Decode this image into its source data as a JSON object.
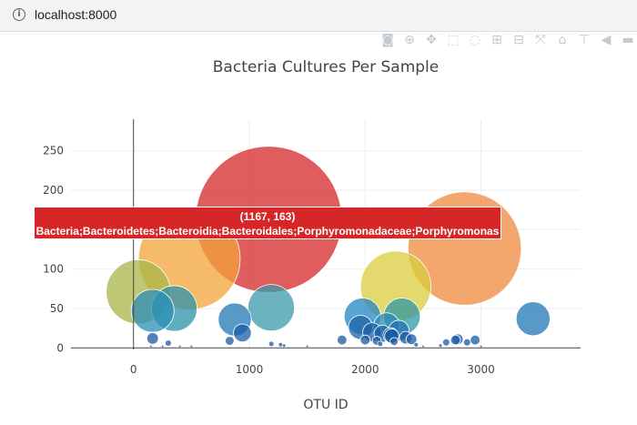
{
  "browser": {
    "url": "localhost:8000"
  },
  "modebar_icons": [
    "camera-icon",
    "zoom-icon",
    "pan-icon",
    "box-select-icon",
    "lasso-icon",
    "zoom-in-icon",
    "zoom-out-icon",
    "autoscale-icon",
    "reset-axes-icon",
    "spike-lines-icon",
    "hover-closest-icon",
    "hover-compare-icon"
  ],
  "chart_data": {
    "type": "scatter",
    "title": "Bacteria Cultures Per Sample",
    "xlabel": "OTU ID",
    "ylabel": "",
    "xticks": [
      0,
      1000,
      2000,
      3000
    ],
    "yticks": [
      0,
      50,
      100,
      150,
      200,
      250
    ],
    "xlim": [
      -540,
      3860
    ],
    "ylim": [
      -2,
      290
    ],
    "grid": true,
    "hover": {
      "line1": "(1167, 163)",
      "line2": "Bacteria;Bacteroidetes;Bacteroidia;Bacteroidales;Porphyromonadaceae;Porphyromonas"
    },
    "points": [
      {
        "x": 1167,
        "y": 163,
        "r": 163,
        "color": "#d62728"
      },
      {
        "x": 2859,
        "y": 126,
        "r": 126,
        "color": "#f08a3c"
      },
      {
        "x": 482,
        "y": 113,
        "r": 113,
        "color": "#f3a33a"
      },
      {
        "x": 2264,
        "y": 78,
        "r": 78,
        "color": "#d9cc3c"
      },
      {
        "x": 41,
        "y": 71,
        "r": 71,
        "color": "#aab64a"
      },
      {
        "x": 1189,
        "y": 51,
        "r": 51,
        "color": "#3a9aa8"
      },
      {
        "x": 352,
        "y": 50,
        "r": 50,
        "color": "#2a92a8"
      },
      {
        "x": 165,
        "y": 47,
        "r": 47,
        "color": "#2b8fb8"
      },
      {
        "x": 2318,
        "y": 40,
        "r": 40,
        "color": "#2d97a6"
      },
      {
        "x": 1977,
        "y": 40,
        "r": 40,
        "color": "#2386c2"
      },
      {
        "x": 3450,
        "y": 37,
        "r": 37,
        "color": "#1f77b4"
      },
      {
        "x": 874,
        "y": 36,
        "r": 36,
        "color": "#1f77b4"
      },
      {
        "x": 2186,
        "y": 28,
        "r": 28,
        "color": "#2a8bb6"
      },
      {
        "x": 1960,
        "y": 26,
        "r": 26,
        "color": "#1d63a8"
      },
      {
        "x": 2290,
        "y": 22,
        "r": 22,
        "color": "#2074b0"
      },
      {
        "x": 2060,
        "y": 20,
        "r": 20,
        "color": "#1c5fa6"
      },
      {
        "x": 940,
        "y": 19,
        "r": 19,
        "color": "#1a5ea6"
      },
      {
        "x": 2150,
        "y": 18,
        "r": 18,
        "color": "#1b60a8"
      },
      {
        "x": 2220,
        "y": 16,
        "r": 16,
        "color": "#1a5aa2"
      },
      {
        "x": 2230,
        "y": 15,
        "r": 15,
        "color": "#1a5aa2"
      },
      {
        "x": 2350,
        "y": 13,
        "r": 13,
        "color": "#1a5aa2"
      },
      {
        "x": 165,
        "y": 12,
        "r": 12,
        "color": "#1a5aa2"
      },
      {
        "x": 2800,
        "y": 11,
        "r": 11,
        "color": "#1a5aa2"
      },
      {
        "x": 2400,
        "y": 11,
        "r": 11,
        "color": "#1a5aa2"
      },
      {
        "x": 1800,
        "y": 10,
        "r": 10,
        "color": "#1a5aa2"
      },
      {
        "x": 2780,
        "y": 10,
        "r": 10,
        "color": "#1a5aa2"
      },
      {
        "x": 2950,
        "y": 10,
        "r": 10,
        "color": "#1a5aa2"
      },
      {
        "x": 2000,
        "y": 10,
        "r": 10,
        "color": "#1a5aa2"
      },
      {
        "x": 830,
        "y": 9,
        "r": 9,
        "color": "#1a5aa2"
      },
      {
        "x": 2100,
        "y": 9,
        "r": 9,
        "color": "#1a5aa2"
      },
      {
        "x": 2250,
        "y": 8,
        "r": 8,
        "color": "#1a5aa2"
      },
      {
        "x": 2700,
        "y": 7,
        "r": 7,
        "color": "#1a5aa2"
      },
      {
        "x": 2880,
        "y": 7,
        "r": 7,
        "color": "#1a5aa2"
      },
      {
        "x": 300,
        "y": 6,
        "r": 6,
        "color": "#1a5aa2"
      },
      {
        "x": 1190,
        "y": 5,
        "r": 5,
        "color": "#1a5aa2"
      },
      {
        "x": 2130,
        "y": 5,
        "r": 5,
        "color": "#1a5aa2"
      },
      {
        "x": 1270,
        "y": 4,
        "r": 4,
        "color": "#1a5aa2"
      },
      {
        "x": 2440,
        "y": 4,
        "r": 4,
        "color": "#1a5aa2"
      },
      {
        "x": 1300,
        "y": 3,
        "r": 3,
        "color": "#1a5aa2"
      },
      {
        "x": 2650,
        "y": 3,
        "r": 3,
        "color": "#1a5aa2"
      },
      {
        "x": 150,
        "y": 2,
        "r": 2,
        "color": "#1a5aa2"
      },
      {
        "x": 250,
        "y": 2,
        "r": 2,
        "color": "#1a5aa2"
      },
      {
        "x": 400,
        "y": 2,
        "r": 2,
        "color": "#1a5aa2"
      },
      {
        "x": 500,
        "y": 2,
        "r": 2,
        "color": "#1a5aa2"
      },
      {
        "x": 1500,
        "y": 2,
        "r": 2,
        "color": "#1a5aa2"
      },
      {
        "x": 2500,
        "y": 2,
        "r": 2,
        "color": "#1a5aa2"
      },
      {
        "x": 3000,
        "y": 2,
        "r": 2,
        "color": "#1a5aa2"
      }
    ]
  }
}
